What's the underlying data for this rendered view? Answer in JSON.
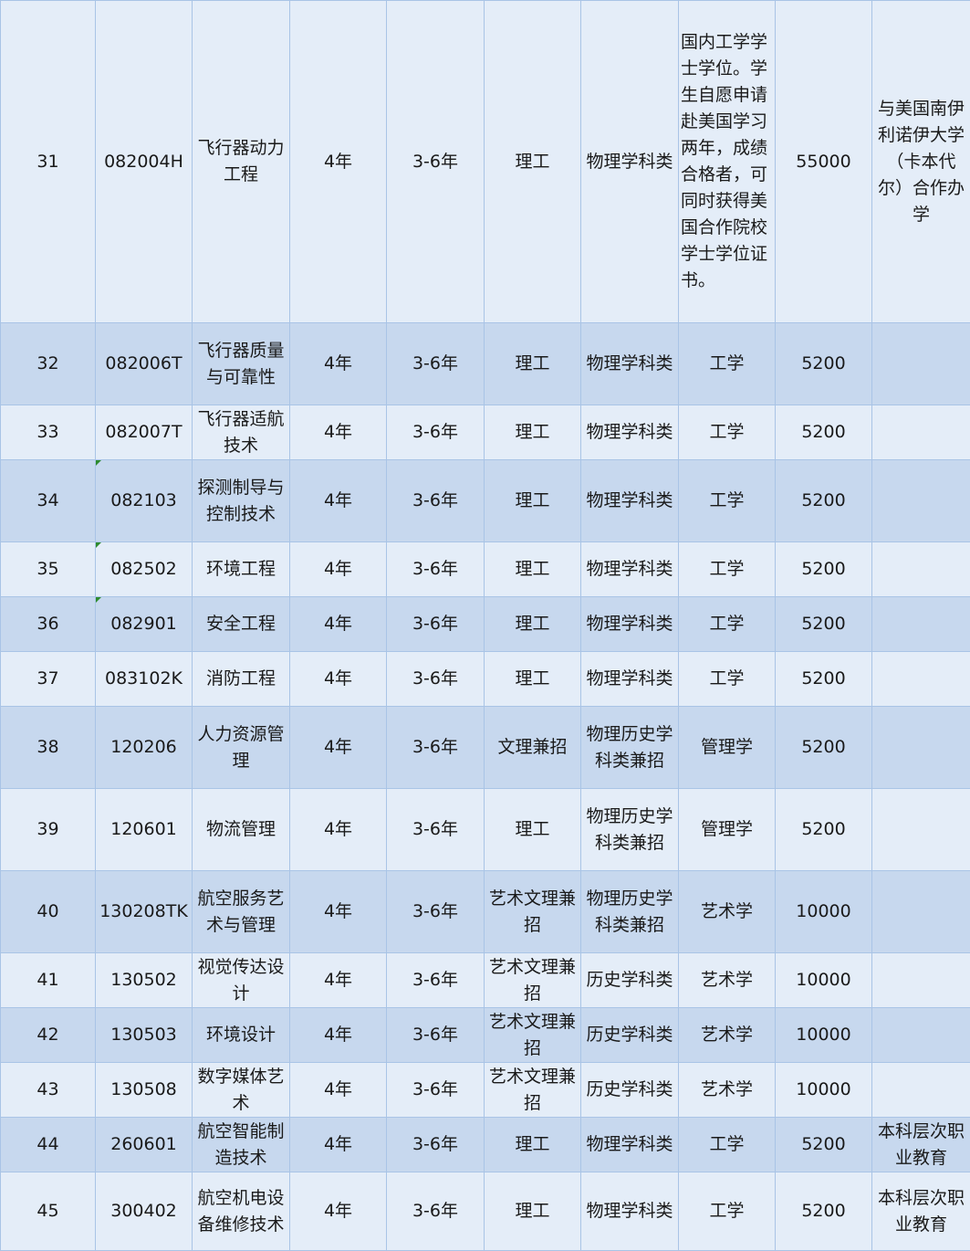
{
  "table": {
    "rows": [
      [
        "31",
        "082004H",
        "飞行器动力工程",
        "4年",
        "3-6年",
        "理工",
        "物理学科类",
        "国内工学学士学位。学生自愿申请赴美国学习两年，成绩合格者，可同时获得美国合作院校学士学位证书。",
        "55000",
        "与美国南伊利诺伊大学（卡本代尔）合作办学"
      ],
      [
        "32",
        "082006T",
        "飞行器质量与可靠性",
        "4年",
        "3-6年",
        "理工",
        "物理学科类",
        "工学",
        "5200",
        ""
      ],
      [
        "33",
        "082007T",
        "飞行器适航技术",
        "4年",
        "3-6年",
        "理工",
        "物理学科类",
        "工学",
        "5200",
        ""
      ],
      [
        "34",
        "082103",
        "探测制导与控制技术",
        "4年",
        "3-6年",
        "理工",
        "物理学科类",
        "工学",
        "5200",
        ""
      ],
      [
        "35",
        "082502",
        "环境工程",
        "4年",
        "3-6年",
        "理工",
        "物理学科类",
        "工学",
        "5200",
        ""
      ],
      [
        "36",
        "082901",
        "安全工程",
        "4年",
        "3-6年",
        "理工",
        "物理学科类",
        "工学",
        "5200",
        ""
      ],
      [
        "37",
        "083102K",
        "消防工程",
        "4年",
        "3-6年",
        "理工",
        "物理学科类",
        "工学",
        "5200",
        ""
      ],
      [
        "38",
        "120206",
        "人力资源管理",
        "4年",
        "3-6年",
        "文理兼招",
        "物理历史学科类兼招",
        "管理学",
        "5200",
        ""
      ],
      [
        "39",
        "120601",
        "物流管理",
        "4年",
        "3-6年",
        "理工",
        "物理历史学科类兼招",
        "管理学",
        "5200",
        ""
      ],
      [
        "40",
        "130208TK",
        "航空服务艺术与管理",
        "4年",
        "3-6年",
        "艺术文理兼招",
        "物理历史学科类兼招",
        "艺术学",
        "10000",
        ""
      ],
      [
        "41",
        "130502",
        "视觉传达设计",
        "4年",
        "3-6年",
        "艺术文理兼招",
        "历史学科类",
        "艺术学",
        "10000",
        ""
      ],
      [
        "42",
        "130503",
        "环境设计",
        "4年",
        "3-6年",
        "艺术文理兼招",
        "历史学科类",
        "艺术学",
        "10000",
        ""
      ],
      [
        "43",
        "130508",
        "数字媒体艺术",
        "4年",
        "3-6年",
        "艺术文理兼招",
        "历史学科类",
        "艺术学",
        "10000",
        ""
      ],
      [
        "44",
        "260601",
        "航空智能制造技术",
        "4年",
        "3-6年",
        "理工",
        "物理学科类",
        "工学",
        "5200",
        "本科层次职业教育"
      ],
      [
        "45",
        "300402",
        "航空机电设备维修技术",
        "4年",
        "3-6年",
        "理工",
        "物理学科类",
        "工学",
        "5200",
        "本科层次职业教育"
      ]
    ],
    "colors": {
      "light_row": "#e4edf8",
      "dark_row": "#c7d8ee",
      "border": "#a9c4e6",
      "comment_flag": "#2e8b2e"
    }
  }
}
